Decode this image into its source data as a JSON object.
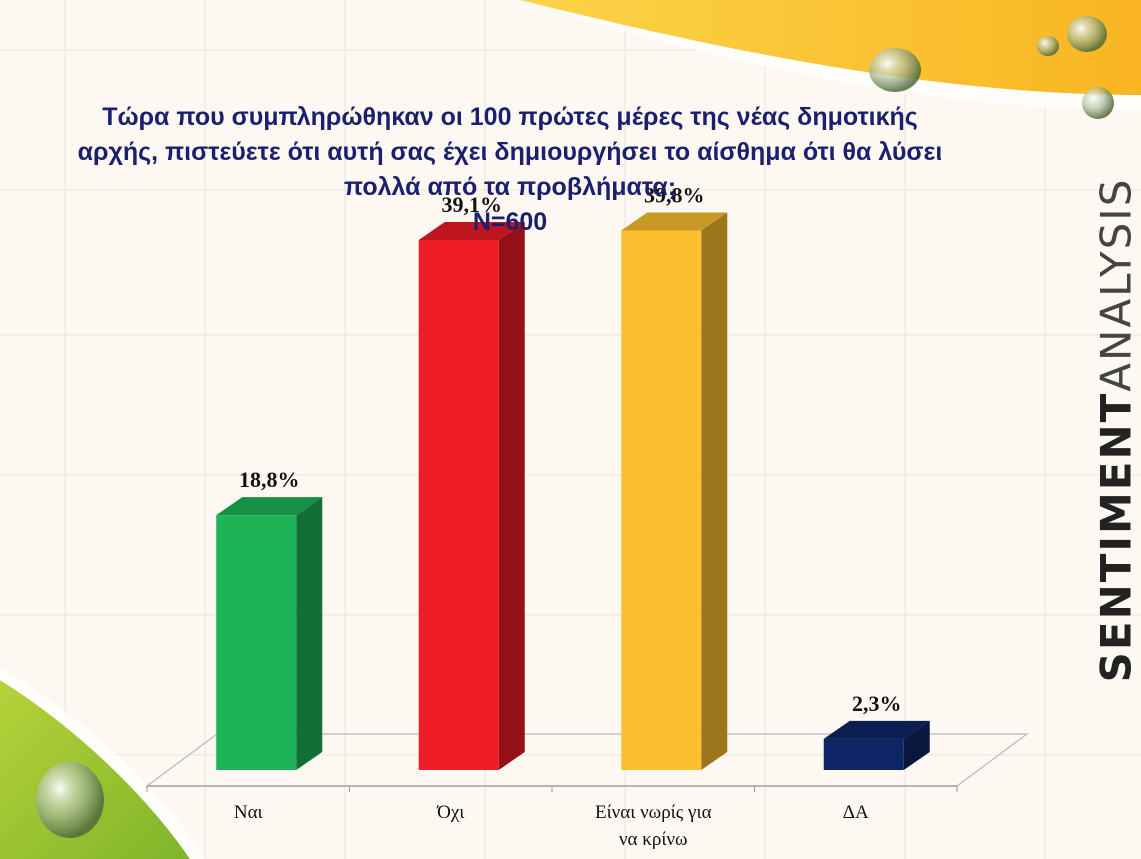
{
  "chart_data": {
    "type": "bar",
    "title_lines": [
      "Τώρα που συμπληρώθηκαν οι 100 πρώτες μέρες της νέας δημοτικής",
      "αρχής, πιστεύετε ότι αυτή σας έχει δημιουργήσει το αίσθημα ότι θα λύσει",
      "πολλά από τα προβλήματα;",
      "N=600"
    ],
    "categories": [
      [
        "Ναι"
      ],
      [
        "Όχι"
      ],
      [
        "Είναι νωρίς για",
        "να κρίνω"
      ],
      [
        "ΔΑ"
      ]
    ],
    "values": [
      18.8,
      39.1,
      39.8,
      2.3
    ],
    "value_labels": [
      "18,8%",
      "39,1%",
      "39,8%",
      "2,3%"
    ],
    "colors": [
      "#1db356",
      "#ee1c25",
      "#fbbf2f",
      "#0e2566"
    ],
    "xlabel": "",
    "ylabel": "",
    "ylim": [
      0,
      45
    ],
    "grid": true,
    "legend": "none"
  },
  "branding": {
    "bold": "SENTIMENT",
    "light": "ANALYSIS"
  }
}
